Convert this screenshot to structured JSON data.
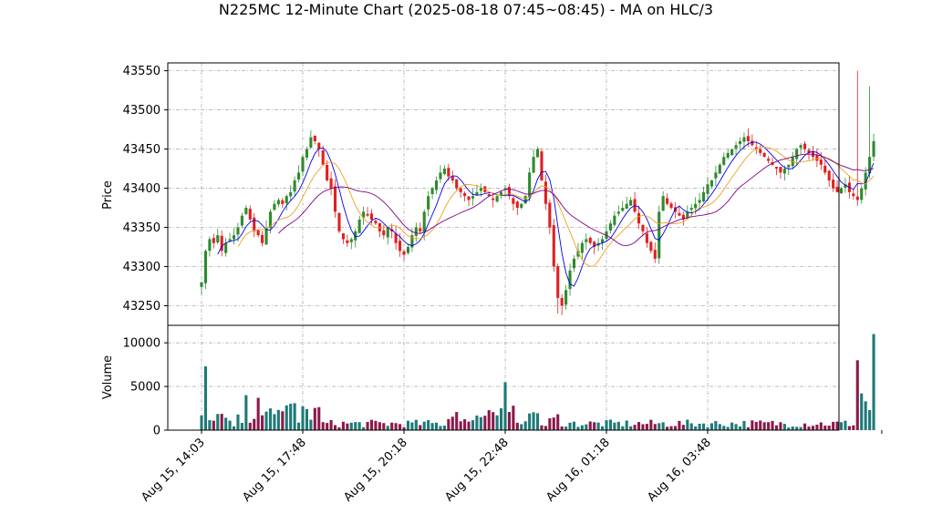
{
  "chart_data": {
    "type": "candlestick",
    "title": "N225MC 12-Minute Chart (2025-08-18 07:45~08:45) - MA on HLC/3",
    "price_panel": {
      "ylabel": "Price",
      "ylim": [
        43225,
        43560
      ],
      "yticks": [
        43250,
        43300,
        43350,
        43400,
        43450,
        43500,
        43550
      ],
      "grid": true
    },
    "volume_panel": {
      "ylabel": "Volume",
      "ylim": [
        0,
        12000
      ],
      "yticks": [
        0,
        5000,
        10000
      ],
      "grid": true
    },
    "x_tick_labels": [
      "Aug 15, 14:03",
      "Aug 15, 17:48",
      "Aug 15, 20:18",
      "Aug 15, 22:48",
      "Aug 16, 01:18",
      "Aug 16, 03:48"
    ],
    "x_ticks_index": [
      0,
      25,
      50,
      75,
      100,
      125
    ],
    "colors": {
      "up": "#2e8b2e",
      "down": "#e02020",
      "vol_up": "#1e7a78",
      "vol_down": "#8b1a4a",
      "ma_fast": "#0000ee",
      "ma_mid": "#f0a020",
      "ma_slow": "#800080",
      "grid": "#b0b0b0"
    },
    "close_series": [
      43280,
      43320,
      43335,
      43330,
      43340,
      43320,
      43330,
      43335,
      43340,
      43350,
      43365,
      43375,
      43360,
      43345,
      43340,
      43330,
      43350,
      43370,
      43380,
      43385,
      43380,
      43390,
      43395,
      43410,
      43420,
      43440,
      43450,
      43465,
      43460,
      43450,
      43430,
      43410,
      43400,
      43370,
      43345,
      43335,
      43330,
      43335,
      43345,
      43360,
      43370,
      43365,
      43360,
      43355,
      43345,
      43340,
      43350,
      43345,
      43330,
      43320,
      43315,
      43325,
      43340,
      43350,
      43345,
      43370,
      43390,
      43400,
      43410,
      43420,
      43425,
      43415,
      43410,
      43400,
      43395,
      43390,
      43385,
      43390,
      43395,
      43400,
      43395,
      43390,
      43385,
      43390,
      43395,
      43400,
      43390,
      43380,
      43375,
      43380,
      43390,
      43420,
      43440,
      43450,
      43410,
      43380,
      43350,
      43300,
      43260,
      43250,
      43270,
      43295,
      43310,
      43320,
      43330,
      43335,
      43330,
      43325,
      43330,
      43335,
      43345,
      43355,
      43365,
      43370,
      43375,
      43380,
      43385,
      43370,
      43355,
      43345,
      43330,
      43320,
      43310,
      43370,
      43390,
      43380,
      43375,
      43370,
      43365,
      43360,
      43370,
      43375,
      43380,
      43385,
      43395,
      43405,
      43410,
      43420,
      43430,
      43440,
      43445,
      43450,
      43455,
      43460,
      43465,
      43460,
      43455,
      43450,
      43445,
      43440,
      43435,
      43430,
      43425,
      43420,
      43425,
      43430,
      43440,
      43450,
      43455,
      43450,
      43445,
      43440,
      43435,
      43430,
      43420,
      43410,
      43400,
      43395,
      43400,
      43405,
      43395,
      43390,
      43385,
      43400,
      43420,
      43440,
      43460
    ]
  }
}
